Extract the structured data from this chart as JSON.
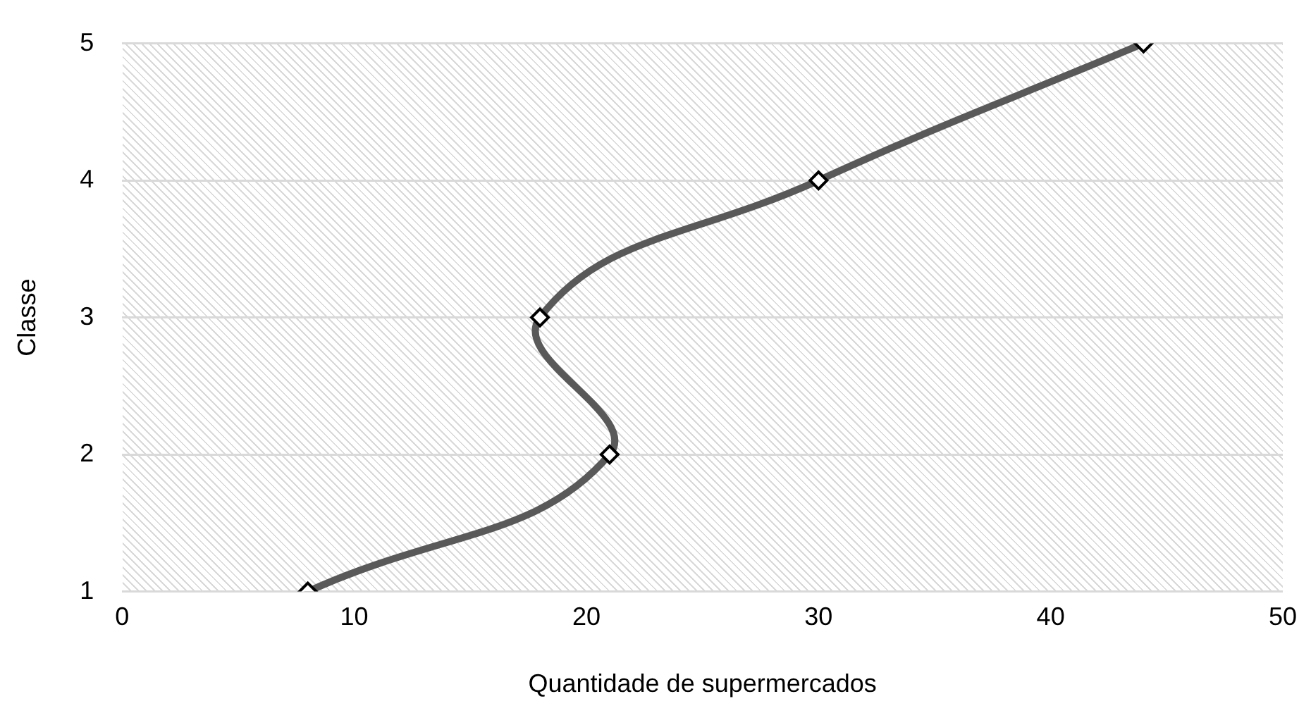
{
  "chart_data": {
    "type": "line",
    "xlabel": "Quantidade de supermercados",
    "ylabel": "Classe",
    "x": [
      8,
      21,
      18,
      30,
      44
    ],
    "values": [
      1,
      2,
      3,
      4,
      5
    ],
    "color": "#595959",
    "xlim": [
      0,
      50
    ],
    "xticks": [
      0,
      10,
      20,
      30,
      40,
      50
    ],
    "ylim": [
      1,
      5
    ],
    "yticks": [
      1,
      2,
      3,
      4,
      5
    ],
    "grid": "y",
    "marker": "diamond"
  }
}
